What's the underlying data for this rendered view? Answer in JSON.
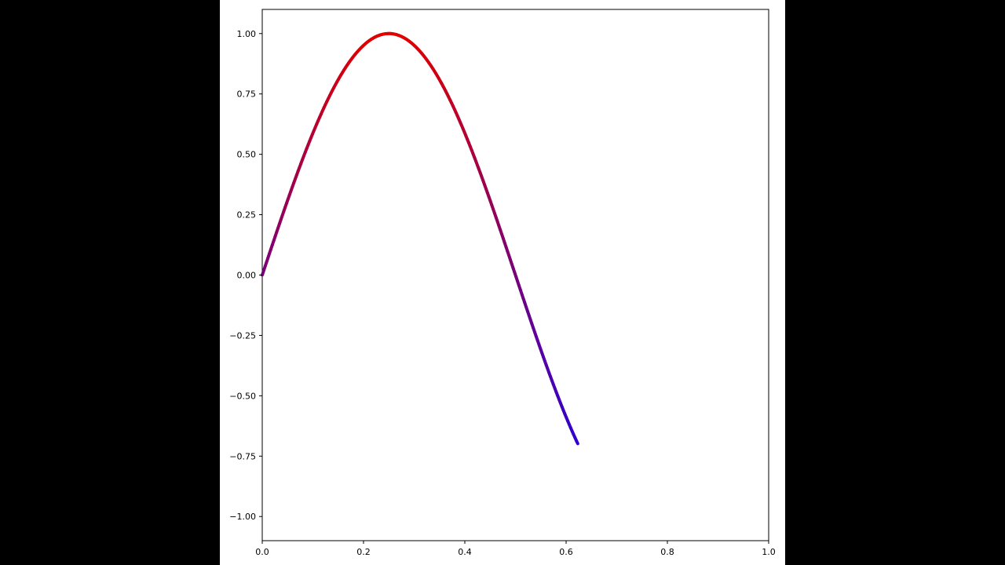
{
  "chart_data": {
    "type": "line",
    "title": "",
    "xlabel": "",
    "ylabel": "",
    "xlim": [
      0.0,
      1.0
    ],
    "ylim": [
      -1.1,
      1.1
    ],
    "x_ticks": [
      0.0,
      0.2,
      0.4,
      0.6,
      0.8,
      1.0
    ],
    "x_tick_labels": [
      "0.0",
      "0.2",
      "0.4",
      "0.6",
      "0.8",
      "1.0"
    ],
    "y_ticks": [
      1.0,
      0.75,
      0.5,
      0.25,
      0.0,
      -0.25,
      -0.5,
      -0.75,
      -1.0
    ],
    "y_tick_labels": [
      "1.00",
      "0.75",
      "0.50",
      "0.25",
      "0.00",
      "−0.25",
      "−0.50",
      "−0.75",
      "−1.00"
    ],
    "grid": false,
    "legend": "none",
    "series": [
      {
        "x": [
          0.0,
          0.025,
          0.05,
          0.075,
          0.1,
          0.125,
          0.15,
          0.175,
          0.2,
          0.225,
          0.25,
          0.275,
          0.3,
          0.325,
          0.35,
          0.375,
          0.4,
          0.425,
          0.45,
          0.475,
          0.5,
          0.525,
          0.55,
          0.575,
          0.6,
          0.623
        ],
        "y": [
          0.0,
          0.156,
          0.309,
          0.454,
          0.588,
          0.707,
          0.809,
          0.891,
          0.951,
          0.988,
          1.0,
          0.988,
          0.951,
          0.891,
          0.809,
          0.707,
          0.588,
          0.454,
          0.309,
          0.156,
          0.0,
          -0.156,
          -0.309,
          -0.454,
          -0.588,
          -0.7
        ],
        "color_map": "color varies with y: blue (#3000d0) at low y to red (#e00000) at high y"
      }
    ]
  },
  "colors": {
    "background": "#000000",
    "figure": "#ffffff",
    "line_low": "#3000d0",
    "line_high": "#e00000"
  }
}
